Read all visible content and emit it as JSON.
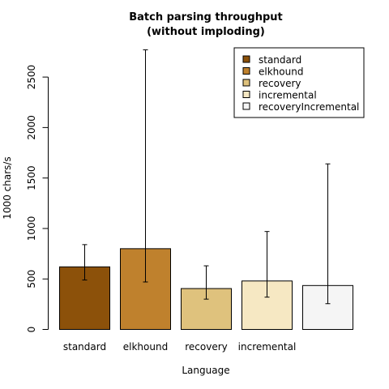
{
  "chart_data": {
    "type": "bar",
    "title": "Batch parsing throughput",
    "subtitle": "(without imploding)",
    "xlabel": "Language",
    "ylabel": "1000 chars/s",
    "ylim": [
      0,
      2500
    ],
    "yticks": [
      "0",
      "500",
      "1000",
      "1500",
      "2000",
      "2500"
    ],
    "ytick_values": [
      0,
      500,
      1000,
      1500,
      2000,
      2500
    ],
    "categories": [
      "standard",
      "elkhound",
      "recovery",
      "incremental",
      ""
    ],
    "series": [
      {
        "name": "standard",
        "color": "#8c510a"
      },
      {
        "name": "elkhound",
        "color": "#bf812d"
      },
      {
        "name": "recovery",
        "color": "#dfc27d"
      },
      {
        "name": "incremental",
        "color": "#f6e8c3"
      },
      {
        "name": "recoveryIncremental",
        "color": "#f5f5f5"
      }
    ],
    "values": [
      620,
      800,
      405,
      480,
      435
    ],
    "error_low": [
      490,
      470,
      300,
      320,
      255
    ],
    "error_high": [
      840,
      2770,
      630,
      970,
      1640
    ],
    "grid": false,
    "legend_position": "top-right"
  }
}
